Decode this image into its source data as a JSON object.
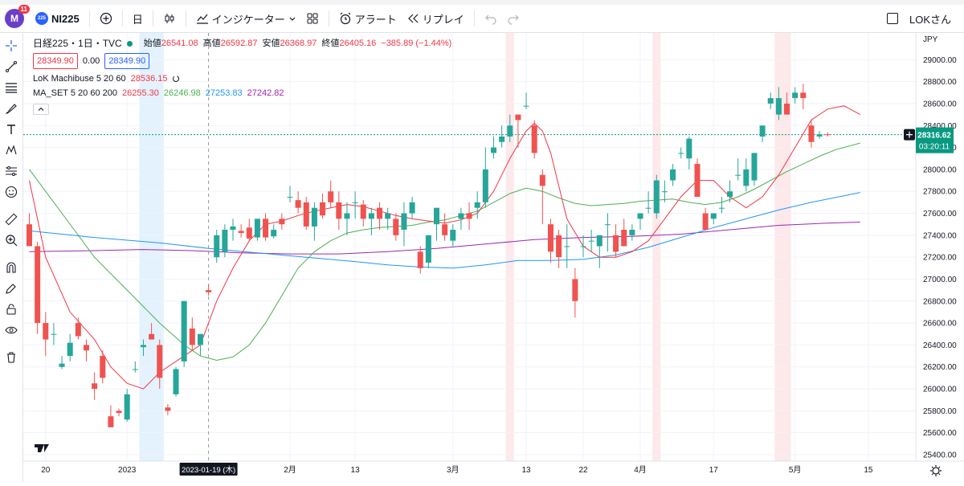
{
  "header": {
    "avatar_letter": "M",
    "notification_count": "11",
    "symbol_logo": "225",
    "symbol": "NI225",
    "interval": "日",
    "indicators_label": "インジケーター",
    "alert_label": "アラート",
    "replay_label": "リプレイ",
    "user_label": "LOKさん"
  },
  "legend": {
    "title": "日経225・1日・TVC",
    "open_label": "始値",
    "open_value": "26541.08",
    "high_label": "高値",
    "high_value": "26592.87",
    "low_label": "安値",
    "low_value": "26368.97",
    "close_label": "終値",
    "close_value": "26405.16",
    "change": "−385.89 (−1.44%)",
    "bid": "28349.90",
    "spread": "0.00",
    "ask": "28349.90",
    "ind1_name": "LoK Machibuse 5 20 60",
    "ind1_value": "28536.15",
    "ind2_name": "MA_SET 5 20 60 200",
    "ind2_values": [
      "26255.30",
      "26246.98",
      "27253.83",
      "27242.82"
    ],
    "ind2_colors": [
      "#f23645",
      "#4caf50",
      "#2196f3",
      "#9c27b0"
    ]
  },
  "chart_data": {
    "type": "candlestick",
    "currency": "JPY",
    "y_ticks": [
      25400,
      25600,
      25800,
      26000,
      26200,
      26400,
      26600,
      26800,
      27000,
      27200,
      27400,
      27600,
      27800,
      28000,
      28200,
      28400,
      28600,
      28800,
      29000
    ],
    "ylim": [
      25400,
      29200
    ],
    "x_tick_labels": [
      {
        "label": "20",
        "index": 2
      },
      {
        "label": "2023",
        "index": 12
      },
      {
        "label": "2月",
        "index": 32
      },
      {
        "label": "13",
        "index": 40
      },
      {
        "label": "3月",
        "index": 52
      },
      {
        "label": "13",
        "index": 61
      },
      {
        "label": "22",
        "index": 68
      },
      {
        "label": "4月",
        "index": 75
      },
      {
        "label": "17",
        "index": 84
      },
      {
        "label": "5月",
        "index": 94
      },
      {
        "label": "15",
        "index": 103
      }
    ],
    "crosshair_index": 22,
    "crosshair_label": "2023-01-19 (木)",
    "price_line": 28316.62,
    "last_price_label": "28316.62",
    "countdown": "03:20:11",
    "highlight_bands": [
      {
        "from": 14,
        "to": 16,
        "color": "#e3f2fd"
      },
      {
        "from": 59,
        "to": 59,
        "color": "#fde8ea"
      },
      {
        "from": 77,
        "to": 77,
        "color": "#fde8ea"
      },
      {
        "from": 92,
        "to": 93,
        "color": "#fde8ea"
      }
    ],
    "candles": [
      [
        27500,
        27600,
        27300,
        27300
      ],
      [
        27300,
        27340,
        26500,
        26600
      ],
      [
        26600,
        26700,
        26300,
        26450
      ],
      [
        26500,
        26600,
        26400,
        26500
      ],
      [
        26200,
        26300,
        26180,
        26230
      ],
      [
        26300,
        26500,
        26250,
        26420
      ],
      [
        26600,
        26650,
        26450,
        26480
      ],
      [
        26400,
        26450,
        26250,
        26350
      ],
      [
        26050,
        26150,
        25900,
        26000
      ],
      [
        26300,
        26350,
        26050,
        26100
      ],
      [
        25750,
        25850,
        25650,
        25650
      ],
      [
        25800,
        25820,
        25750,
        25780
      ],
      [
        25720,
        26000,
        25700,
        25950
      ],
      [
        26180,
        26250,
        26150,
        26180
      ],
      [
        26380,
        26450,
        26300,
        26400
      ],
      [
        26500,
        26600,
        26450,
        26450
      ],
      [
        26400,
        26450,
        26000,
        26100
      ],
      [
        25830,
        25860,
        25760,
        25800
      ],
      [
        25950,
        26200,
        25930,
        26180
      ],
      [
        26250,
        26800,
        26200,
        26800
      ],
      [
        26550,
        26650,
        26350,
        26400
      ],
      [
        26400,
        26500,
        26300,
        26500
      ],
      [
        26900,
        26950,
        26850,
        26880
      ],
      [
        27200,
        27450,
        27150,
        27400
      ],
      [
        27250,
        27500,
        27200,
        27450
      ],
      [
        27450,
        27550,
        27350,
        27480
      ],
      [
        27440,
        27500,
        27380,
        27420
      ],
      [
        27470,
        27550,
        27350,
        27370
      ],
      [
        27380,
        27550,
        27350,
        27550
      ],
      [
        27550,
        27600,
        27350,
        27380
      ],
      [
        27390,
        27500,
        27370,
        27450
      ],
      [
        27550,
        27600,
        27450,
        27500
      ],
      [
        27750,
        27850,
        27700,
        27750
      ],
      [
        27720,
        27800,
        27600,
        27650
      ],
      [
        27700,
        27750,
        27450,
        27480
      ],
      [
        27480,
        27700,
        27350,
        27650
      ],
      [
        27700,
        27780,
        27550,
        27580
      ],
      [
        27800,
        27900,
        27650,
        27700
      ],
      [
        27700,
        27800,
        27450,
        27550
      ],
      [
        27550,
        27700,
        27400,
        27600
      ],
      [
        27700,
        27800,
        27550,
        27700
      ],
      [
        27680,
        27720,
        27480,
        27550
      ],
      [
        27550,
        27650,
        27400,
        27600
      ],
      [
        27650,
        27700,
        27450,
        27550
      ],
      [
        27550,
        27650,
        27450,
        27600
      ],
      [
        27550,
        27600,
        27350,
        27400
      ],
      [
        27450,
        27700,
        27300,
        27600
      ],
      [
        27600,
        27750,
        27550,
        27700
      ],
      [
        27250,
        27300,
        27050,
        27100
      ],
      [
        27150,
        27400,
        27100,
        27400
      ],
      [
        27500,
        27650,
        27350,
        27650
      ],
      [
        27500,
        27600,
        27350,
        27400
      ],
      [
        27350,
        27500,
        27300,
        27450
      ],
      [
        27550,
        27650,
        27450,
        27600
      ],
      [
        27600,
        27700,
        27450,
        27550
      ],
      [
        27650,
        27800,
        27550,
        27700
      ],
      [
        27700,
        28200,
        27650,
        28000
      ],
      [
        28150,
        28300,
        28100,
        28200
      ],
      [
        28250,
        28400,
        28200,
        28300
      ],
      [
        28300,
        28500,
        28250,
        28400
      ],
      [
        28500,
        28500,
        28200,
        28450
      ],
      [
        28580,
        28700,
        28550,
        28580
      ],
      [
        28400,
        28450,
        28100,
        28150
      ],
      [
        27950,
        28000,
        27500,
        27850
      ],
      [
        27500,
        27550,
        27150,
        27250
      ],
      [
        27400,
        27450,
        27100,
        27200
      ],
      [
        27300,
        27500,
        27100,
        27300
      ],
      [
        27000,
        27100,
        26650,
        26800
      ],
      [
        27300,
        27400,
        27200,
        27300
      ],
      [
        27350,
        27450,
        27250,
        27350
      ],
      [
        27300,
        27400,
        27100,
        27400
      ],
      [
        27500,
        27600,
        27250,
        27500
      ],
      [
        27400,
        27500,
        27200,
        27250
      ],
      [
        27450,
        27550,
        27300,
        27300
      ],
      [
        27400,
        27500,
        27350,
        27450
      ],
      [
        27550,
        27600,
        27450,
        27600
      ],
      [
        27650,
        27800,
        27600,
        27650
      ],
      [
        27600,
        27950,
        27550,
        27900
      ],
      [
        27800,
        27900,
        27700,
        27800
      ],
      [
        27900,
        28050,
        27850,
        28000
      ],
      [
        28150,
        28200,
        28100,
        28150
      ],
      [
        28100,
        28300,
        28000,
        28280
      ],
      [
        28050,
        28100,
        27750,
        27750
      ],
      [
        27600,
        27650,
        27450,
        27450
      ],
      [
        27550,
        27600,
        27500,
        27600
      ],
      [
        27650,
        27750,
        27600,
        27650
      ],
      [
        27750,
        27900,
        27700,
        27800
      ],
      [
        27950,
        28100,
        27900,
        27950
      ],
      [
        27850,
        28100,
        27800,
        28000
      ],
      [
        27900,
        28150,
        27850,
        28150
      ],
      [
        28300,
        28400,
        28250,
        28400
      ],
      [
        28600,
        28700,
        28550,
        28650
      ],
      [
        28500,
        28750,
        28450,
        28650
      ],
      [
        28600,
        28700,
        28500,
        28500
      ],
      [
        28650,
        28750,
        28600,
        28700
      ],
      [
        28700,
        28780,
        28550,
        28650
      ],
      [
        28400,
        28450,
        28200,
        28250
      ],
      [
        28300,
        28350,
        28280,
        28320
      ],
      [
        28320,
        28340,
        28300,
        28316
      ]
    ],
    "ma_red": [
      [
        0,
        27900
      ],
      [
        2,
        27200
      ],
      [
        5,
        26700
      ],
      [
        8,
        26450
      ],
      [
        10,
        26200
      ],
      [
        12,
        26050
      ],
      [
        14,
        26000
      ],
      [
        16,
        26150
      ],
      [
        18,
        26250
      ],
      [
        19,
        26300
      ],
      [
        21,
        26400
      ],
      [
        23,
        26800
      ],
      [
        25,
        27100
      ],
      [
        27,
        27350
      ],
      [
        29,
        27500
      ],
      [
        31,
        27530
      ],
      [
        33,
        27580
      ],
      [
        35,
        27620
      ],
      [
        37,
        27650
      ],
      [
        39,
        27680
      ],
      [
        41,
        27660
      ],
      [
        43,
        27620
      ],
      [
        45,
        27580
      ],
      [
        47,
        27550
      ],
      [
        49,
        27530
      ],
      [
        51,
        27510
      ],
      [
        53,
        27540
      ],
      [
        55,
        27600
      ],
      [
        57,
        27800
      ],
      [
        59,
        28100
      ],
      [
        61,
        28350
      ],
      [
        62,
        28420
      ],
      [
        63,
        28350
      ],
      [
        64,
        28150
      ],
      [
        65,
        27850
      ],
      [
        66,
        27550
      ],
      [
        68,
        27300
      ],
      [
        70,
        27200
      ],
      [
        72,
        27200
      ],
      [
        74,
        27250
      ],
      [
        76,
        27350
      ],
      [
        78,
        27550
      ],
      [
        80,
        27750
      ],
      [
        82,
        27900
      ],
      [
        84,
        27900
      ],
      [
        86,
        27750
      ],
      [
        88,
        27650
      ],
      [
        90,
        27750
      ],
      [
        92,
        27950
      ],
      [
        94,
        28200
      ],
      [
        96,
        28450
      ],
      [
        98,
        28550
      ],
      [
        100,
        28580
      ],
      [
        102,
        28500
      ]
    ],
    "ma_green": [
      [
        0,
        28000
      ],
      [
        4,
        27600
      ],
      [
        8,
        27200
      ],
      [
        12,
        26900
      ],
      [
        16,
        26600
      ],
      [
        19,
        26400
      ],
      [
        21,
        26300
      ],
      [
        23,
        26260
      ],
      [
        25,
        26290
      ],
      [
        27,
        26400
      ],
      [
        29,
        26600
      ],
      [
        31,
        26850
      ],
      [
        33,
        27100
      ],
      [
        35,
        27250
      ],
      [
        37,
        27350
      ],
      [
        39,
        27420
      ],
      [
        41,
        27450
      ],
      [
        43,
        27470
      ],
      [
        45,
        27480
      ],
      [
        47,
        27490
      ],
      [
        49,
        27520
      ],
      [
        51,
        27540
      ],
      [
        53,
        27580
      ],
      [
        55,
        27620
      ],
      [
        57,
        27700
      ],
      [
        59,
        27780
      ],
      [
        61,
        27830
      ],
      [
        63,
        27800
      ],
      [
        65,
        27740
      ],
      [
        67,
        27690
      ],
      [
        69,
        27670
      ],
      [
        71,
        27680
      ],
      [
        73,
        27690
      ],
      [
        75,
        27710
      ],
      [
        77,
        27720
      ],
      [
        79,
        27730
      ],
      [
        81,
        27700
      ],
      [
        83,
        27680
      ],
      [
        85,
        27700
      ],
      [
        87,
        27750
      ],
      [
        89,
        27820
      ],
      [
        91,
        27900
      ],
      [
        93,
        27980
      ],
      [
        95,
        28050
      ],
      [
        97,
        28120
      ],
      [
        99,
        28180
      ],
      [
        102,
        28240
      ]
    ],
    "ma_blue": [
      [
        0,
        27440
      ],
      [
        8,
        27380
      ],
      [
        16,
        27330
      ],
      [
        22,
        27280
      ],
      [
        28,
        27240
      ],
      [
        34,
        27200
      ],
      [
        40,
        27160
      ],
      [
        44,
        27130
      ],
      [
        48,
        27110
      ],
      [
        52,
        27100
      ],
      [
        56,
        27130
      ],
      [
        60,
        27170
      ],
      [
        64,
        27170
      ],
      [
        68,
        27180
      ],
      [
        72,
        27220
      ],
      [
        76,
        27290
      ],
      [
        80,
        27380
      ],
      [
        84,
        27470
      ],
      [
        88,
        27550
      ],
      [
        92,
        27630
      ],
      [
        96,
        27700
      ],
      [
        100,
        27760
      ],
      [
        102,
        27790
      ]
    ],
    "ma_purple": [
      [
        0,
        27250
      ],
      [
        8,
        27260
      ],
      [
        14,
        27270
      ],
      [
        20,
        27260
      ],
      [
        26,
        27240
      ],
      [
        32,
        27230
      ],
      [
        38,
        27230
      ],
      [
        44,
        27250
      ],
      [
        50,
        27280
      ],
      [
        56,
        27320
      ],
      [
        62,
        27360
      ],
      [
        68,
        27380
      ],
      [
        74,
        27390
      ],
      [
        80,
        27410
      ],
      [
        86,
        27450
      ],
      [
        92,
        27490
      ],
      [
        98,
        27510
      ],
      [
        102,
        27520
      ]
    ]
  }
}
